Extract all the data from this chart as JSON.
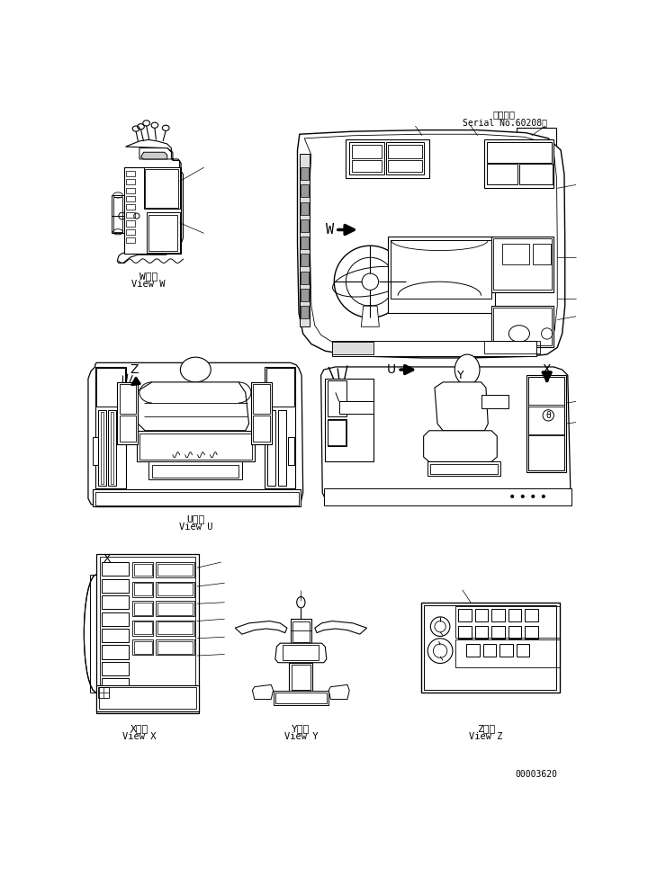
{
  "title_jp": "適用号機",
  "title_serial": "Serial No.60208～",
  "drawing_number": "00003620",
  "bg_color": "#ffffff",
  "line_color": "#000000",
  "views": {
    "W": {
      "label_jp": "W　視",
      "label_en": "View W"
    },
    "U": {
      "label_jp": "U　視",
      "label_en": "View U"
    },
    "X": {
      "label_jp": "X　視",
      "label_en": "View X"
    },
    "Y": {
      "label_jp": "Y　視",
      "label_en": "View Y"
    },
    "Z": {
      "label_jp": "Z　視",
      "label_en": "View Z"
    }
  }
}
